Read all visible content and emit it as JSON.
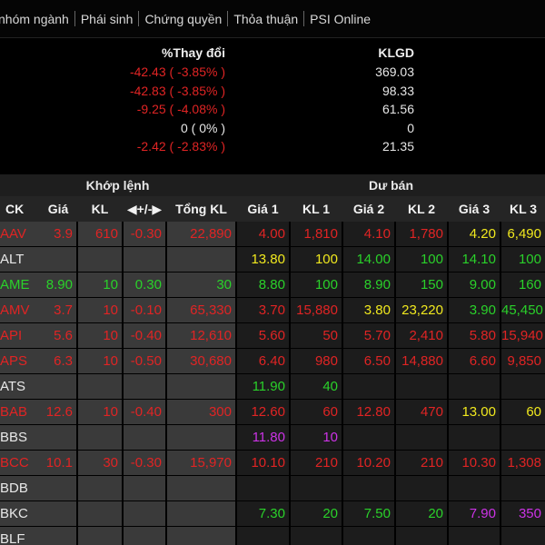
{
  "tabs": [
    "nhóm ngành",
    "Phái sinh",
    "Chứng quyền",
    "Thỏa thuận",
    "PSI Online"
  ],
  "summary": {
    "change_header": "%Thay đổi",
    "volume_header": "KLGD",
    "rows": [
      {
        "change": "-42.43 ( -3.85% )",
        "volume": "369.03",
        "color": "#e02424"
      },
      {
        "change": "-42.83 ( -3.85% )",
        "volume": "98.33",
        "color": "#e02424"
      },
      {
        "change": "-9.25 ( -4.08% )",
        "volume": "61.56",
        "color": "#e02424"
      },
      {
        "change": "0 ( 0% )",
        "volume": "0",
        "color": "#e6e6e6"
      },
      {
        "change": "-2.42 ( -2.83% )",
        "volume": "21.35",
        "color": "#e02424"
      }
    ]
  },
  "groups": {
    "matched": "Khớp lệnh",
    "ask": "Dư bán"
  },
  "headers": {
    "ck": "CK",
    "price": "Giá",
    "vol": "KL",
    "change": "+/-",
    "total": "Tổng KL",
    "p1": "Giá 1",
    "v1": "KL 1",
    "p2": "Giá 2",
    "v2": "KL 2",
    "p3": "Giá 3",
    "v3": "KL 3"
  },
  "colors": {
    "red": "#e02424",
    "green": "#2ad12a",
    "yellow": "#f0e81e",
    "white": "#e8e8e8",
    "purple": "#cc33e6",
    "cyan": "#22c8e0"
  },
  "rows": [
    {
      "ck": "AAV",
      "ck_c": "red",
      "price": "3.9",
      "price_c": "red",
      "vol": "610",
      "vol_c": "red",
      "chg": "-0.30",
      "chg_c": "red",
      "total": "22,890",
      "total_c": "red",
      "p1": "4.00",
      "p1_c": "red",
      "v1": "1,810",
      "v1_c": "red",
      "p2": "4.10",
      "p2_c": "red",
      "v2": "1,780",
      "v2_c": "red",
      "p3": "4.20",
      "p3_c": "yellow",
      "v3": "6,490",
      "v3_c": "yellow"
    },
    {
      "ck": "ALT",
      "ck_c": "white",
      "price": "",
      "price_c": "white",
      "vol": "",
      "vol_c": "white",
      "chg": "",
      "chg_c": "white",
      "total": "",
      "total_c": "white",
      "p1": "13.80",
      "p1_c": "yellow",
      "v1": "100",
      "v1_c": "yellow",
      "p2": "14.00",
      "p2_c": "green",
      "v2": "100",
      "v2_c": "green",
      "p3": "14.10",
      "p3_c": "green",
      "v3": "100",
      "v3_c": "green"
    },
    {
      "ck": "AME",
      "ck_c": "green",
      "price": "8.90",
      "price_c": "green",
      "vol": "10",
      "vol_c": "green",
      "chg": "0.30",
      "chg_c": "green",
      "total": "30",
      "total_c": "green",
      "p1": "8.80",
      "p1_c": "green",
      "v1": "100",
      "v1_c": "green",
      "p2": "8.90",
      "p2_c": "green",
      "v2": "150",
      "v2_c": "green",
      "p3": "9.00",
      "p3_c": "green",
      "v3": "160",
      "v3_c": "green"
    },
    {
      "ck": "AMV",
      "ck_c": "red",
      "price": "3.7",
      "price_c": "red",
      "vol": "10",
      "vol_c": "red",
      "chg": "-0.10",
      "chg_c": "red",
      "total": "65,330",
      "total_c": "red",
      "p1": "3.70",
      "p1_c": "red",
      "v1": "15,880",
      "v1_c": "red",
      "p2": "3.80",
      "p2_c": "yellow",
      "v2": "23,220",
      "v2_c": "yellow",
      "p3": "3.90",
      "p3_c": "green",
      "v3": "45,450",
      "v3_c": "green"
    },
    {
      "ck": "API",
      "ck_c": "red",
      "price": "5.6",
      "price_c": "red",
      "vol": "10",
      "vol_c": "red",
      "chg": "-0.40",
      "chg_c": "red",
      "total": "12,610",
      "total_c": "red",
      "p1": "5.60",
      "p1_c": "red",
      "v1": "50",
      "v1_c": "red",
      "p2": "5.70",
      "p2_c": "red",
      "v2": "2,410",
      "v2_c": "red",
      "p3": "5.80",
      "p3_c": "red",
      "v3": "15,940",
      "v3_c": "red"
    },
    {
      "ck": "APS",
      "ck_c": "red",
      "price": "6.3",
      "price_c": "red",
      "vol": "10",
      "vol_c": "red",
      "chg": "-0.50",
      "chg_c": "red",
      "total": "30,680",
      "total_c": "red",
      "p1": "6.40",
      "p1_c": "red",
      "v1": "980",
      "v1_c": "red",
      "p2": "6.50",
      "p2_c": "red",
      "v2": "14,880",
      "v2_c": "red",
      "p3": "6.60",
      "p3_c": "red",
      "v3": "9,850",
      "v3_c": "red"
    },
    {
      "ck": "ATS",
      "ck_c": "white",
      "price": "",
      "price_c": "white",
      "vol": "",
      "vol_c": "white",
      "chg": "",
      "chg_c": "white",
      "total": "",
      "total_c": "white",
      "p1": "11.90",
      "p1_c": "green",
      "v1": "40",
      "v1_c": "green",
      "p2": "",
      "p2_c": "white",
      "v2": "",
      "v2_c": "white",
      "p3": "",
      "p3_c": "white",
      "v3": "",
      "v3_c": "white"
    },
    {
      "ck": "BAB",
      "ck_c": "red",
      "price": "12.6",
      "price_c": "red",
      "vol": "10",
      "vol_c": "red",
      "chg": "-0.40",
      "chg_c": "red",
      "total": "300",
      "total_c": "red",
      "p1": "12.60",
      "p1_c": "red",
      "v1": "60",
      "v1_c": "red",
      "p2": "12.80",
      "p2_c": "red",
      "v2": "470",
      "v2_c": "red",
      "p3": "13.00",
      "p3_c": "yellow",
      "v3": "60",
      "v3_c": "yellow"
    },
    {
      "ck": "BBS",
      "ck_c": "white",
      "price": "",
      "price_c": "white",
      "vol": "",
      "vol_c": "white",
      "chg": "",
      "chg_c": "white",
      "total": "",
      "total_c": "white",
      "p1": "11.80",
      "p1_c": "purple",
      "v1": "10",
      "v1_c": "purple",
      "p2": "",
      "p2_c": "white",
      "v2": "",
      "v2_c": "white",
      "p3": "",
      "p3_c": "white",
      "v3": "",
      "v3_c": "white"
    },
    {
      "ck": "BCC",
      "ck_c": "red",
      "price": "10.1",
      "price_c": "red",
      "vol": "30",
      "vol_c": "red",
      "chg": "-0.30",
      "chg_c": "red",
      "total": "15,970",
      "total_c": "red",
      "p1": "10.10",
      "p1_c": "red",
      "v1": "210",
      "v1_c": "red",
      "p2": "10.20",
      "p2_c": "red",
      "v2": "210",
      "v2_c": "red",
      "p3": "10.30",
      "p3_c": "red",
      "v3": "1,308",
      "v3_c": "red"
    },
    {
      "ck": "BDB",
      "ck_c": "white",
      "price": "",
      "price_c": "white",
      "vol": "",
      "vol_c": "white",
      "chg": "",
      "chg_c": "white",
      "total": "",
      "total_c": "white",
      "p1": "",
      "p1_c": "white",
      "v1": "",
      "v1_c": "white",
      "p2": "",
      "p2_c": "white",
      "v2": "",
      "v2_c": "white",
      "p3": "",
      "p3_c": "white",
      "v3": "",
      "v3_c": "white"
    },
    {
      "ck": "BKC",
      "ck_c": "white",
      "price": "",
      "price_c": "white",
      "vol": "",
      "vol_c": "white",
      "chg": "",
      "chg_c": "white",
      "total": "",
      "total_c": "white",
      "p1": "7.30",
      "p1_c": "green",
      "v1": "20",
      "v1_c": "green",
      "p2": "7.50",
      "p2_c": "green",
      "v2": "20",
      "v2_c": "green",
      "p3": "7.90",
      "p3_c": "purple",
      "v3": "350",
      "v3_c": "purple"
    },
    {
      "ck": "BLF",
      "ck_c": "white",
      "price": "",
      "price_c": "white",
      "vol": "",
      "vol_c": "white",
      "chg": "",
      "chg_c": "white",
      "total": "",
      "total_c": "white",
      "p1": "",
      "p1_c": "white",
      "v1": "",
      "v1_c": "white",
      "p2": "",
      "p2_c": "white",
      "v2": "",
      "v2_c": "white",
      "p3": "",
      "p3_c": "white",
      "v3": "",
      "v3_c": "white"
    }
  ]
}
